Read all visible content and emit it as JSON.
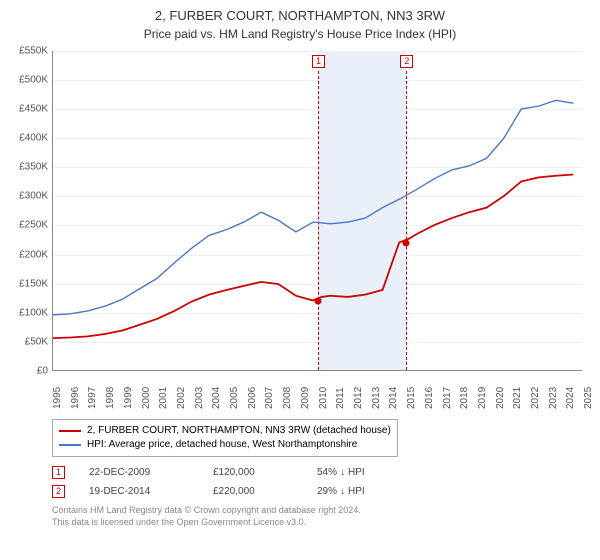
{
  "title": "2, FURBER COURT, NORTHAMPTON, NN3 3RW",
  "subtitle": "Price paid vs. HM Land Registry's House Price Index (HPI)",
  "chart": {
    "type": "line",
    "y_axis": {
      "min": 0,
      "max": 550000,
      "step": 50000,
      "labels": [
        "£0",
        "£50K",
        "£100K",
        "£150K",
        "£200K",
        "£250K",
        "£300K",
        "£350K",
        "£400K",
        "£450K",
        "£500K",
        "£550K"
      ]
    },
    "x_axis": {
      "min": 1995,
      "max": 2025.5,
      "labels": [
        "1995",
        "1996",
        "1997",
        "1998",
        "1999",
        "2000",
        "2001",
        "2002",
        "2003",
        "2004",
        "2005",
        "2006",
        "2007",
        "2008",
        "2009",
        "2010",
        "2011",
        "2012",
        "2013",
        "2014",
        "2015",
        "2016",
        "2017",
        "2018",
        "2019",
        "2020",
        "2021",
        "2022",
        "2023",
        "2024",
        "2025"
      ]
    },
    "series": [
      {
        "key": "price_paid",
        "label": "2, FURBER COURT, NORTHAMPTON, NN3 3RW (detached house)",
        "color": "#cc0000",
        "width": 1.8,
        "data": [
          [
            1995,
            55000
          ],
          [
            1996,
            56000
          ],
          [
            1997,
            58000
          ],
          [
            1998,
            62000
          ],
          [
            1999,
            68000
          ],
          [
            2000,
            78000
          ],
          [
            2001,
            88000
          ],
          [
            2002,
            102000
          ],
          [
            2003,
            118000
          ],
          [
            2004,
            130000
          ],
          [
            2005,
            138000
          ],
          [
            2006,
            145000
          ],
          [
            2007,
            152000
          ],
          [
            2008,
            148000
          ],
          [
            2009,
            128000
          ],
          [
            2009.97,
            120000
          ],
          [
            2010.5,
            126000
          ],
          [
            2011,
            128000
          ],
          [
            2012,
            126000
          ],
          [
            2013,
            130000
          ],
          [
            2014,
            138000
          ],
          [
            2014.96,
            220000
          ],
          [
            2015.5,
            226000
          ],
          [
            2016,
            235000
          ],
          [
            2017,
            250000
          ],
          [
            2018,
            262000
          ],
          [
            2019,
            272000
          ],
          [
            2020,
            280000
          ],
          [
            2021,
            300000
          ],
          [
            2022,
            325000
          ],
          [
            2023,
            332000
          ],
          [
            2024,
            335000
          ],
          [
            2025,
            337000
          ]
        ]
      },
      {
        "key": "hpi",
        "label": "HPI: Average price, detached house, West Northamptonshire",
        "color": "#4a78c4",
        "width": 1.4,
        "data": [
          [
            1995,
            95000
          ],
          [
            1996,
            97000
          ],
          [
            1997,
            102000
          ],
          [
            1998,
            110000
          ],
          [
            1999,
            122000
          ],
          [
            2000,
            140000
          ],
          [
            2001,
            158000
          ],
          [
            2002,
            185000
          ],
          [
            2003,
            210000
          ],
          [
            2004,
            232000
          ],
          [
            2005,
            242000
          ],
          [
            2006,
            255000
          ],
          [
            2007,
            272000
          ],
          [
            2008,
            258000
          ],
          [
            2009,
            238000
          ],
          [
            2010,
            255000
          ],
          [
            2011,
            252000
          ],
          [
            2012,
            255000
          ],
          [
            2013,
            262000
          ],
          [
            2014,
            280000
          ],
          [
            2015,
            295000
          ],
          [
            2016,
            312000
          ],
          [
            2017,
            330000
          ],
          [
            2018,
            345000
          ],
          [
            2019,
            352000
          ],
          [
            2020,
            365000
          ],
          [
            2021,
            400000
          ],
          [
            2022,
            450000
          ],
          [
            2023,
            455000
          ],
          [
            2024,
            465000
          ],
          [
            2025,
            460000
          ]
        ]
      }
    ],
    "sale_markers": [
      {
        "n": "1",
        "date": "22-DEC-2009",
        "year": 2009.97,
        "price": 120000,
        "price_label": "£120,000",
        "diff_label": "54%",
        "arrow": "↓",
        "vs": "HPI",
        "color": "#cc0000"
      },
      {
        "n": "2",
        "date": "19-DEC-2014",
        "year": 2014.96,
        "price": 220000,
        "price_label": "£220,000",
        "diff_label": "29%",
        "arrow": "↓",
        "vs": "HPI",
        "color": "#cc0000"
      }
    ],
    "shade_color": "#eaf0f9",
    "grid_color": "#eeeeee",
    "background_color": "#ffffff"
  },
  "footer": {
    "line1": "Contains HM Land Registry data © Crown copyright and database right 2024.",
    "line2": "This data is licensed under the Open Government Licence v3.0."
  }
}
